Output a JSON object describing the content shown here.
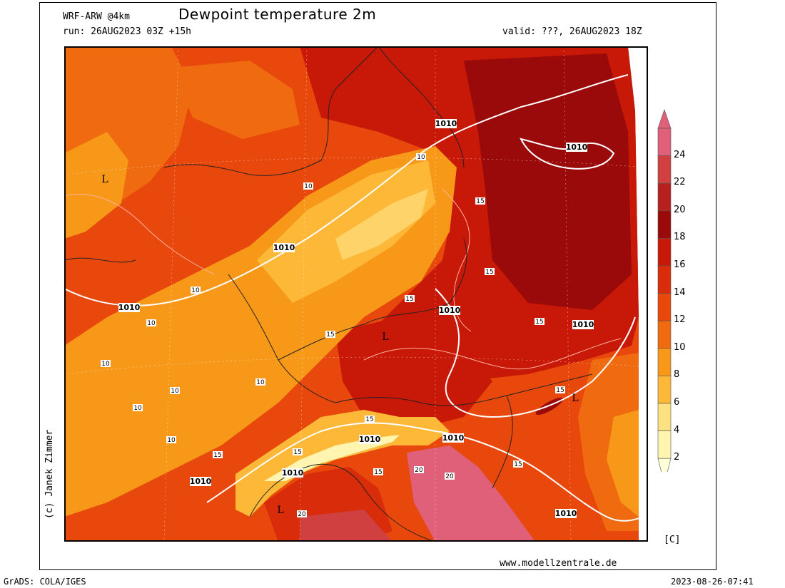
{
  "header": {
    "model": "WRF-ARW @4km",
    "title": "Dewpoint temperature 2m",
    "run": "run: 26AUG2023 03Z +15h",
    "valid": "valid: ???, 26AUG2023 18Z"
  },
  "footer": {
    "website": "www.modellzentrale.de",
    "software": "GrADS: COLA/IGES",
    "timestamp": "2023-08-26-07:41",
    "credit": "(c) Janek Zimmer"
  },
  "legend": {
    "unit": "[C]",
    "ticks": [
      "24",
      "22",
      "20",
      "18",
      "16",
      "14",
      "12",
      "10",
      "8",
      "6",
      "4",
      "2"
    ],
    "colors": [
      "#e0607a",
      "#d04040",
      "#b82020",
      "#9a0a0a",
      "#c81808",
      "#d82c0a",
      "#e8480c",
      "#f06a10",
      "#f79818",
      "#fdb838",
      "#fde080",
      "#fff5b0",
      "#ffffd8"
    ]
  },
  "map": {
    "isobar_labels": [
      {
        "text": "1010"
      },
      {
        "text": "1010"
      },
      {
        "text": "1010"
      },
      {
        "text": "1010"
      },
      {
        "text": "1010"
      },
      {
        "text": "1010"
      },
      {
        "text": "1010"
      },
      {
        "text": "1010"
      },
      {
        "text": "1010"
      },
      {
        "text": "1010"
      },
      {
        "text": "1010"
      }
    ],
    "contour_labels": [
      "10",
      "10",
      "10",
      "10",
      "10",
      "10",
      "10",
      "10",
      "10",
      "15",
      "15",
      "15",
      "15",
      "15",
      "15",
      "15",
      "15",
      "15",
      "15",
      "15",
      "20",
      "20",
      "20"
    ],
    "low_markers": [
      "L",
      "L",
      "L",
      "L"
    ]
  }
}
